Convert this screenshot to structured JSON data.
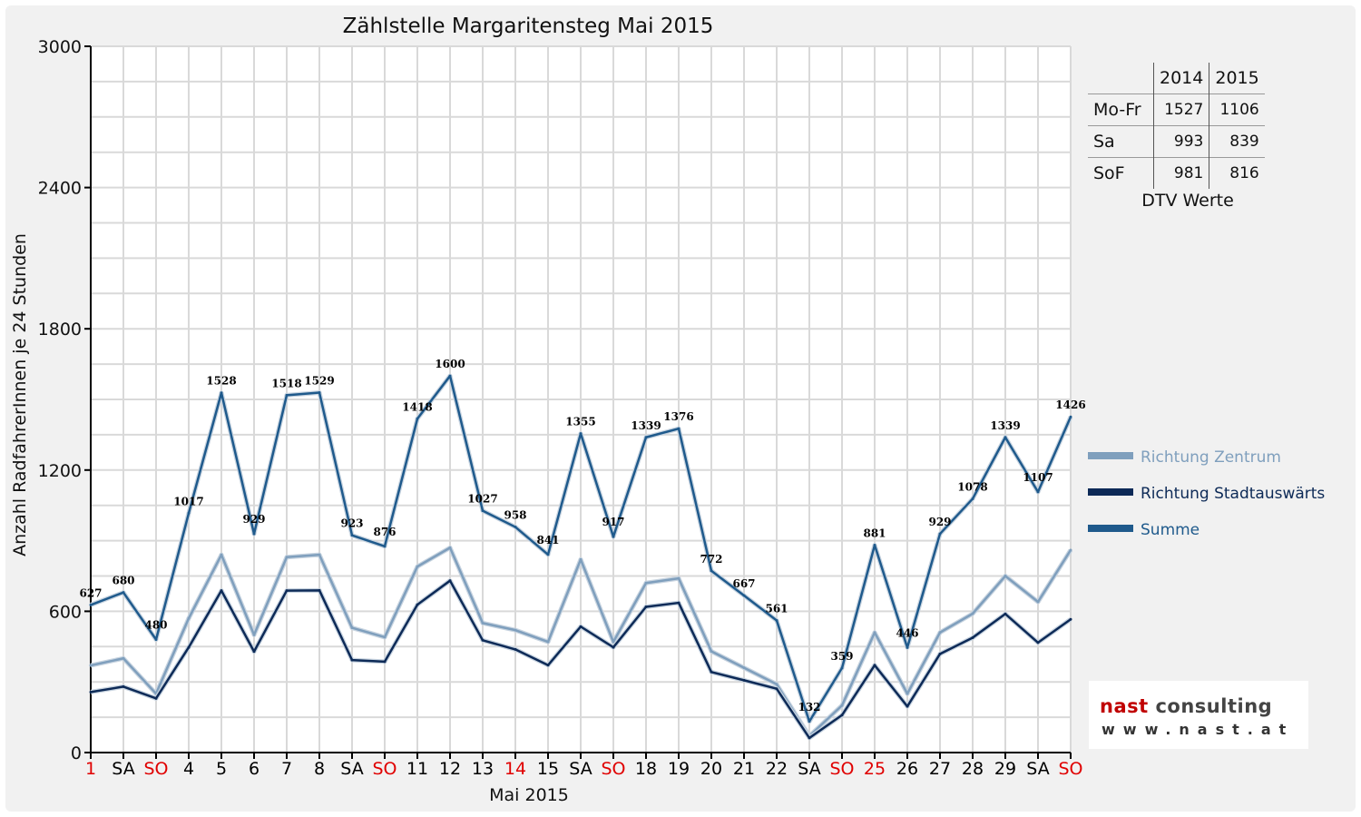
{
  "chart_data": {
    "type": "line",
    "title": "Zählstelle Margaritensteg Mai 2015",
    "xlabel": "Mai 2015",
    "ylabel": "Anzahl RadfahrerInnen je 24 Stunden",
    "ylim": [
      0,
      3000
    ],
    "yticks": [
      "0",
      "600",
      "1200",
      "1800",
      "2400",
      "3000"
    ],
    "categories": [
      "1",
      "SA",
      "SO",
      "4",
      "5",
      "6",
      "7",
      "8",
      "SA",
      "SO",
      "11",
      "12",
      "13",
      "14",
      "15",
      "SA",
      "SO",
      "18",
      "19",
      "20",
      "21",
      "22",
      "SA",
      "SO",
      "25",
      "26",
      "27",
      "28",
      "29",
      "SA",
      "SO"
    ],
    "category_colors": [
      "#e00000",
      "#000000",
      "#e00000",
      "#000000",
      "#000000",
      "#000000",
      "#000000",
      "#000000",
      "#000000",
      "#e00000",
      "#000000",
      "#000000",
      "#000000",
      "#e00000",
      "#000000",
      "#000000",
      "#e00000",
      "#000000",
      "#000000",
      "#000000",
      "#000000",
      "#000000",
      "#000000",
      "#e00000",
      "#e00000",
      "#000000",
      "#000000",
      "#000000",
      "#000000",
      "#000000",
      "#e00000"
    ],
    "grid": true,
    "legend_position": "right",
    "series": [
      {
        "name": "Richtung Zentrum",
        "color": "#7f9fbd",
        "values": [
          370,
          400,
          250,
          570,
          840,
          500,
          830,
          840,
          530,
          490,
          790,
          870,
          550,
          520,
          470,
          820,
          470,
          720,
          740,
          430,
          360,
          290,
          70,
          200,
          510,
          250,
          510,
          590,
          750,
          640,
          860
        ]
      },
      {
        "name": "Richtung Stadtauswärts",
        "color": "#0d2a57",
        "values": [
          257,
          280,
          230,
          447,
          688,
          429,
          688,
          689,
          393,
          386,
          628,
          730,
          477,
          438,
          371,
          535,
          447,
          619,
          636,
          342,
          307,
          271,
          62,
          159,
          371,
          196,
          419,
          488,
          589,
          467,
          566
        ]
      },
      {
        "name": "Summe",
        "color": "#1f5a8c",
        "values": [
          627,
          680,
          480,
          1017,
          1528,
          929,
          1518,
          1529,
          923,
          876,
          1418,
          1600,
          1027,
          958,
          841,
          1355,
          917,
          1339,
          1376,
          772,
          667,
          561,
          132,
          359,
          881,
          446,
          929,
          1078,
          1339,
          1107,
          1426
        ],
        "data_labels": true
      }
    ]
  },
  "stats_table": {
    "headers": [
      "",
      "2014",
      "2015"
    ],
    "rows": [
      {
        "label": "Mo-Fr",
        "v2014": "1527",
        "v2015": "1106"
      },
      {
        "label": "Sa",
        "v2014": "993",
        "v2015": "839"
      },
      {
        "label": "SoF",
        "v2014": "981",
        "v2015": "816"
      }
    ],
    "caption": "DTV Werte"
  },
  "logo": {
    "name_part1": "nast",
    "name_part2": "consulting",
    "url": "www.nast.at",
    "accent_color": "#c00000"
  }
}
